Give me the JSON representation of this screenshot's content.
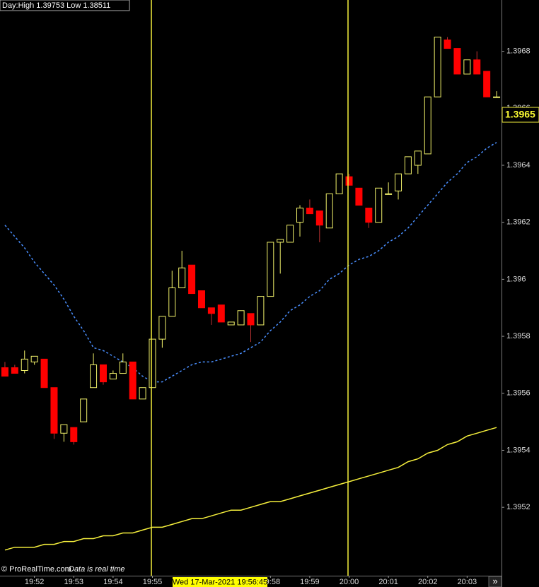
{
  "header": {
    "day_range": "Day:High 1.39753 Low 1.38511"
  },
  "chart_data": {
    "type": "candlestick",
    "categories": [
      null,
      null,
      null,
      "19:52",
      null,
      null,
      null,
      "19:53",
      null,
      null,
      null,
      "19:54",
      null,
      null,
      null,
      "19:55",
      null,
      null,
      null,
      null,
      null,
      null,
      null,
      null,
      null,
      null,
      null,
      "19:58",
      null,
      null,
      null,
      "19:59",
      null,
      null,
      null,
      "20:00",
      null,
      null,
      null,
      "20:01",
      null,
      null,
      null,
      "20:02",
      null,
      null,
      null,
      "20:03",
      null,
      null,
      null
    ],
    "open": [
      1.39569,
      1.39569,
      1.39568,
      1.39571,
      1.39572,
      1.39562,
      1.39546,
      1.39548,
      1.3955,
      1.39562,
      1.3957,
      1.39565,
      1.39567,
      1.39571,
      1.39558,
      1.39562,
      1.39579,
      1.39587,
      1.39597,
      1.39605,
      1.39596,
      1.3959,
      1.39591,
      1.39584,
      1.39584,
      1.39588,
      1.39584,
      1.39594,
      1.39613,
      1.39613,
      1.3962,
      1.39625,
      1.39624,
      1.39618,
      1.3963,
      1.39636,
      1.39632,
      1.39625,
      1.3962,
      1.3963,
      1.39631,
      1.39637,
      1.3964,
      1.39644,
      1.39664,
      1.39684,
      1.39681,
      1.39672,
      1.39677,
      1.39673,
      1.39664
    ],
    "high": [
      1.39571,
      1.3957,
      1.39575,
      1.39573,
      1.39572,
      1.39562,
      1.39549,
      1.39548,
      1.39558,
      1.39574,
      1.3957,
      1.39568,
      1.39574,
      1.39571,
      1.39562,
      1.39579,
      1.39587,
      1.39603,
      1.3961,
      1.39605,
      1.39596,
      1.3959,
      1.39591,
      1.39585,
      1.39589,
      1.39588,
      1.39594,
      1.39613,
      1.39614,
      1.39619,
      1.39626,
      1.39628,
      1.39624,
      1.3963,
      1.39637,
      1.39637,
      1.39632,
      1.39625,
      1.39632,
      1.39634,
      1.39637,
      1.39643,
      1.39645,
      1.39664,
      1.39685,
      1.39685,
      1.39681,
      1.39677,
      1.3968,
      1.39673,
      1.39666
    ],
    "low": [
      1.39566,
      1.39567,
      1.39567,
      1.3957,
      1.39562,
      1.39544,
      1.39543,
      1.39542,
      1.3955,
      1.39562,
      1.39563,
      1.39565,
      1.39567,
      1.39558,
      1.39558,
      1.39562,
      1.39576,
      1.39587,
      1.39597,
      1.39595,
      1.3959,
      1.39584,
      1.39585,
      1.39584,
      1.39584,
      1.39578,
      1.39584,
      1.39594,
      1.39602,
      1.39613,
      1.39615,
      1.39623,
      1.39613,
      1.39618,
      1.3963,
      1.39633,
      1.39626,
      1.39618,
      1.3962,
      1.3963,
      1.39628,
      1.39637,
      1.39637,
      1.39644,
      1.39664,
      1.39681,
      1.39672,
      1.39672,
      1.39672,
      1.39664,
      1.39664
    ],
    "close": [
      1.39566,
      1.39567,
      1.39572,
      1.39573,
      1.39562,
      1.39546,
      1.39549,
      1.39543,
      1.39558,
      1.3957,
      1.39564,
      1.39567,
      1.39571,
      1.39558,
      1.39562,
      1.39579,
      1.39587,
      1.39597,
      1.39604,
      1.39595,
      1.3959,
      1.39588,
      1.39585,
      1.39585,
      1.39589,
      1.39584,
      1.39594,
      1.39613,
      1.39614,
      1.39619,
      1.39625,
      1.39623,
      1.39619,
      1.3963,
      1.39637,
      1.39633,
      1.39626,
      1.3962,
      1.39632,
      1.3963,
      1.39637,
      1.39643,
      1.39645,
      1.39664,
      1.39685,
      1.39681,
      1.39672,
      1.39677,
      1.39672,
      1.39664,
      1.39664
    ],
    "up_color": "#f2f26b",
    "down_color": "#ff0000",
    "overlays": [
      {
        "color": "#4a8fff",
        "dashed": true,
        "values": [
          1.39619,
          1.39615,
          1.39611,
          1.39606,
          1.39602,
          1.39598,
          1.39593,
          1.39587,
          1.39582,
          1.39576,
          1.39575,
          1.39573,
          1.39571,
          1.39569,
          1.39566,
          1.39564,
          1.39564,
          1.39566,
          1.39568,
          1.3957,
          1.39571,
          1.39571,
          1.39572,
          1.39573,
          1.39574,
          1.39576,
          1.39578,
          1.39582,
          1.39585,
          1.39589,
          1.39591,
          1.39594,
          1.39596,
          1.396,
          1.39602,
          1.39605,
          1.39607,
          1.39608,
          1.3961,
          1.39613,
          1.39615,
          1.39618,
          1.39622,
          1.39626,
          1.3963,
          1.39634,
          1.39637,
          1.39641,
          1.39643,
          1.39646,
          1.39648
        ]
      },
      {
        "color": "#f5ef3c",
        "dashed": false,
        "values": [
          1.39505,
          1.39506,
          1.39506,
          1.39506,
          1.39507,
          1.39507,
          1.39508,
          1.39508,
          1.39509,
          1.39509,
          1.3951,
          1.3951,
          1.39511,
          1.39511,
          1.39512,
          1.39513,
          1.39513,
          1.39514,
          1.39515,
          1.39516,
          1.39516,
          1.39517,
          1.39518,
          1.39519,
          1.39519,
          1.3952,
          1.39521,
          1.39522,
          1.39522,
          1.39523,
          1.39524,
          1.39525,
          1.39526,
          1.39527,
          1.39528,
          1.39529,
          1.3953,
          1.39531,
          1.39532,
          1.39533,
          1.39534,
          1.39536,
          1.39537,
          1.39539,
          1.3954,
          1.39542,
          1.39543,
          1.39545,
          1.39546,
          1.39547,
          1.39548
        ]
      }
    ],
    "ylim": [
      1.39496,
      1.39698
    ],
    "yticks": [
      1.3952,
      1.3954,
      1.3956,
      1.3958,
      1.396,
      1.3962,
      1.3964,
      1.3966,
      1.3968
    ]
  },
  "last_price_label": "1.3965",
  "cursor_time_label": "Wed 17-Mar-2021 19:56:45",
  "footer": {
    "copyright": "© ProRealTime.com",
    "status": "Data is real time"
  },
  "scroll_button": "»"
}
